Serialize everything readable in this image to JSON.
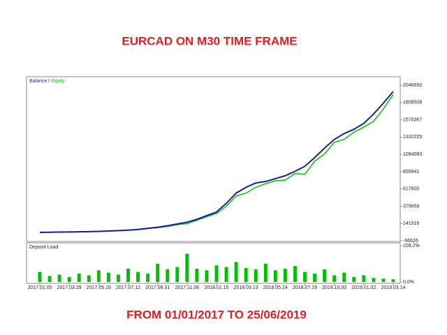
{
  "heading": "EURCAD ON M30 TIME FRAME",
  "caption": "FROM 01/01/2017 TO 25/06/2019",
  "chart_data": [
    {
      "type": "line",
      "legend_separator": "/",
      "categories": [
        "2017.01.05",
        null,
        null,
        "2017.03.29",
        null,
        null,
        "2017.05.16",
        null,
        null,
        "2017.07.12",
        null,
        null,
        "2017.08.31",
        null,
        null,
        "2017.11.08",
        null,
        null,
        "2018.01.15",
        null,
        null,
        "2018.03.13",
        null,
        null,
        "2018.05.24",
        null,
        null,
        "2018.07.19",
        null,
        null,
        "2018.10.03",
        null,
        null,
        "2019.01.02",
        null,
        null,
        "2019.03.14"
      ],
      "series": [
        {
          "name": "Balance",
          "color": "#1a1aa6",
          "values": [
            20000,
            21000,
            23000,
            25000,
            27000,
            30000,
            33000,
            38000,
            44000,
            50000,
            60000,
            75000,
            90000,
            110000,
            135000,
            160000,
            200000,
            250000,
            300000,
            420000,
            560000,
            640000,
            700000,
            720000,
            760000,
            800000,
            860000,
            930000,
            1050000,
            1180000,
            1300000,
            1380000,
            1440000,
            1520000,
            1650000,
            1800000,
            1960000
          ]
        },
        {
          "name": "Equity",
          "color": "#00c000",
          "values": [
            19000,
            20000,
            22000,
            24000,
            26000,
            29000,
            31000,
            36000,
            41000,
            47000,
            56000,
            70000,
            84000,
            100000,
            125000,
            140000,
            185000,
            235000,
            280000,
            380000,
            520000,
            560000,
            640000,
            690000,
            730000,
            740000,
            830000,
            820000,
            1000000,
            1100000,
            1260000,
            1300000,
            1400000,
            1470000,
            1550000,
            1720000,
            1920000
          ]
        }
      ],
      "ylim": [
        -96626,
        2163000
      ],
      "yticks": [
        2046650,
        1808508,
        1570367,
        1332225,
        1094083,
        855941,
        617800,
        379658,
        141516,
        -96626
      ]
    },
    {
      "type": "bar",
      "title": "Deposit Load",
      "color": "#00c000",
      "values": [
        30,
        18,
        22,
        15,
        25,
        20,
        35,
        28,
        22,
        40,
        30,
        25,
        55,
        38,
        45,
        85,
        40,
        35,
        50,
        45,
        60,
        42,
        38,
        55,
        35,
        40,
        48,
        30,
        25,
        38,
        20,
        28,
        15,
        20,
        12,
        10,
        8
      ],
      "ylim": [
        0,
        109.2
      ],
      "yticks": [
        {
          "value": 109.2,
          "label": "109.2%"
        },
        {
          "value": 0,
          "label": "0.0%"
        }
      ]
    }
  ]
}
